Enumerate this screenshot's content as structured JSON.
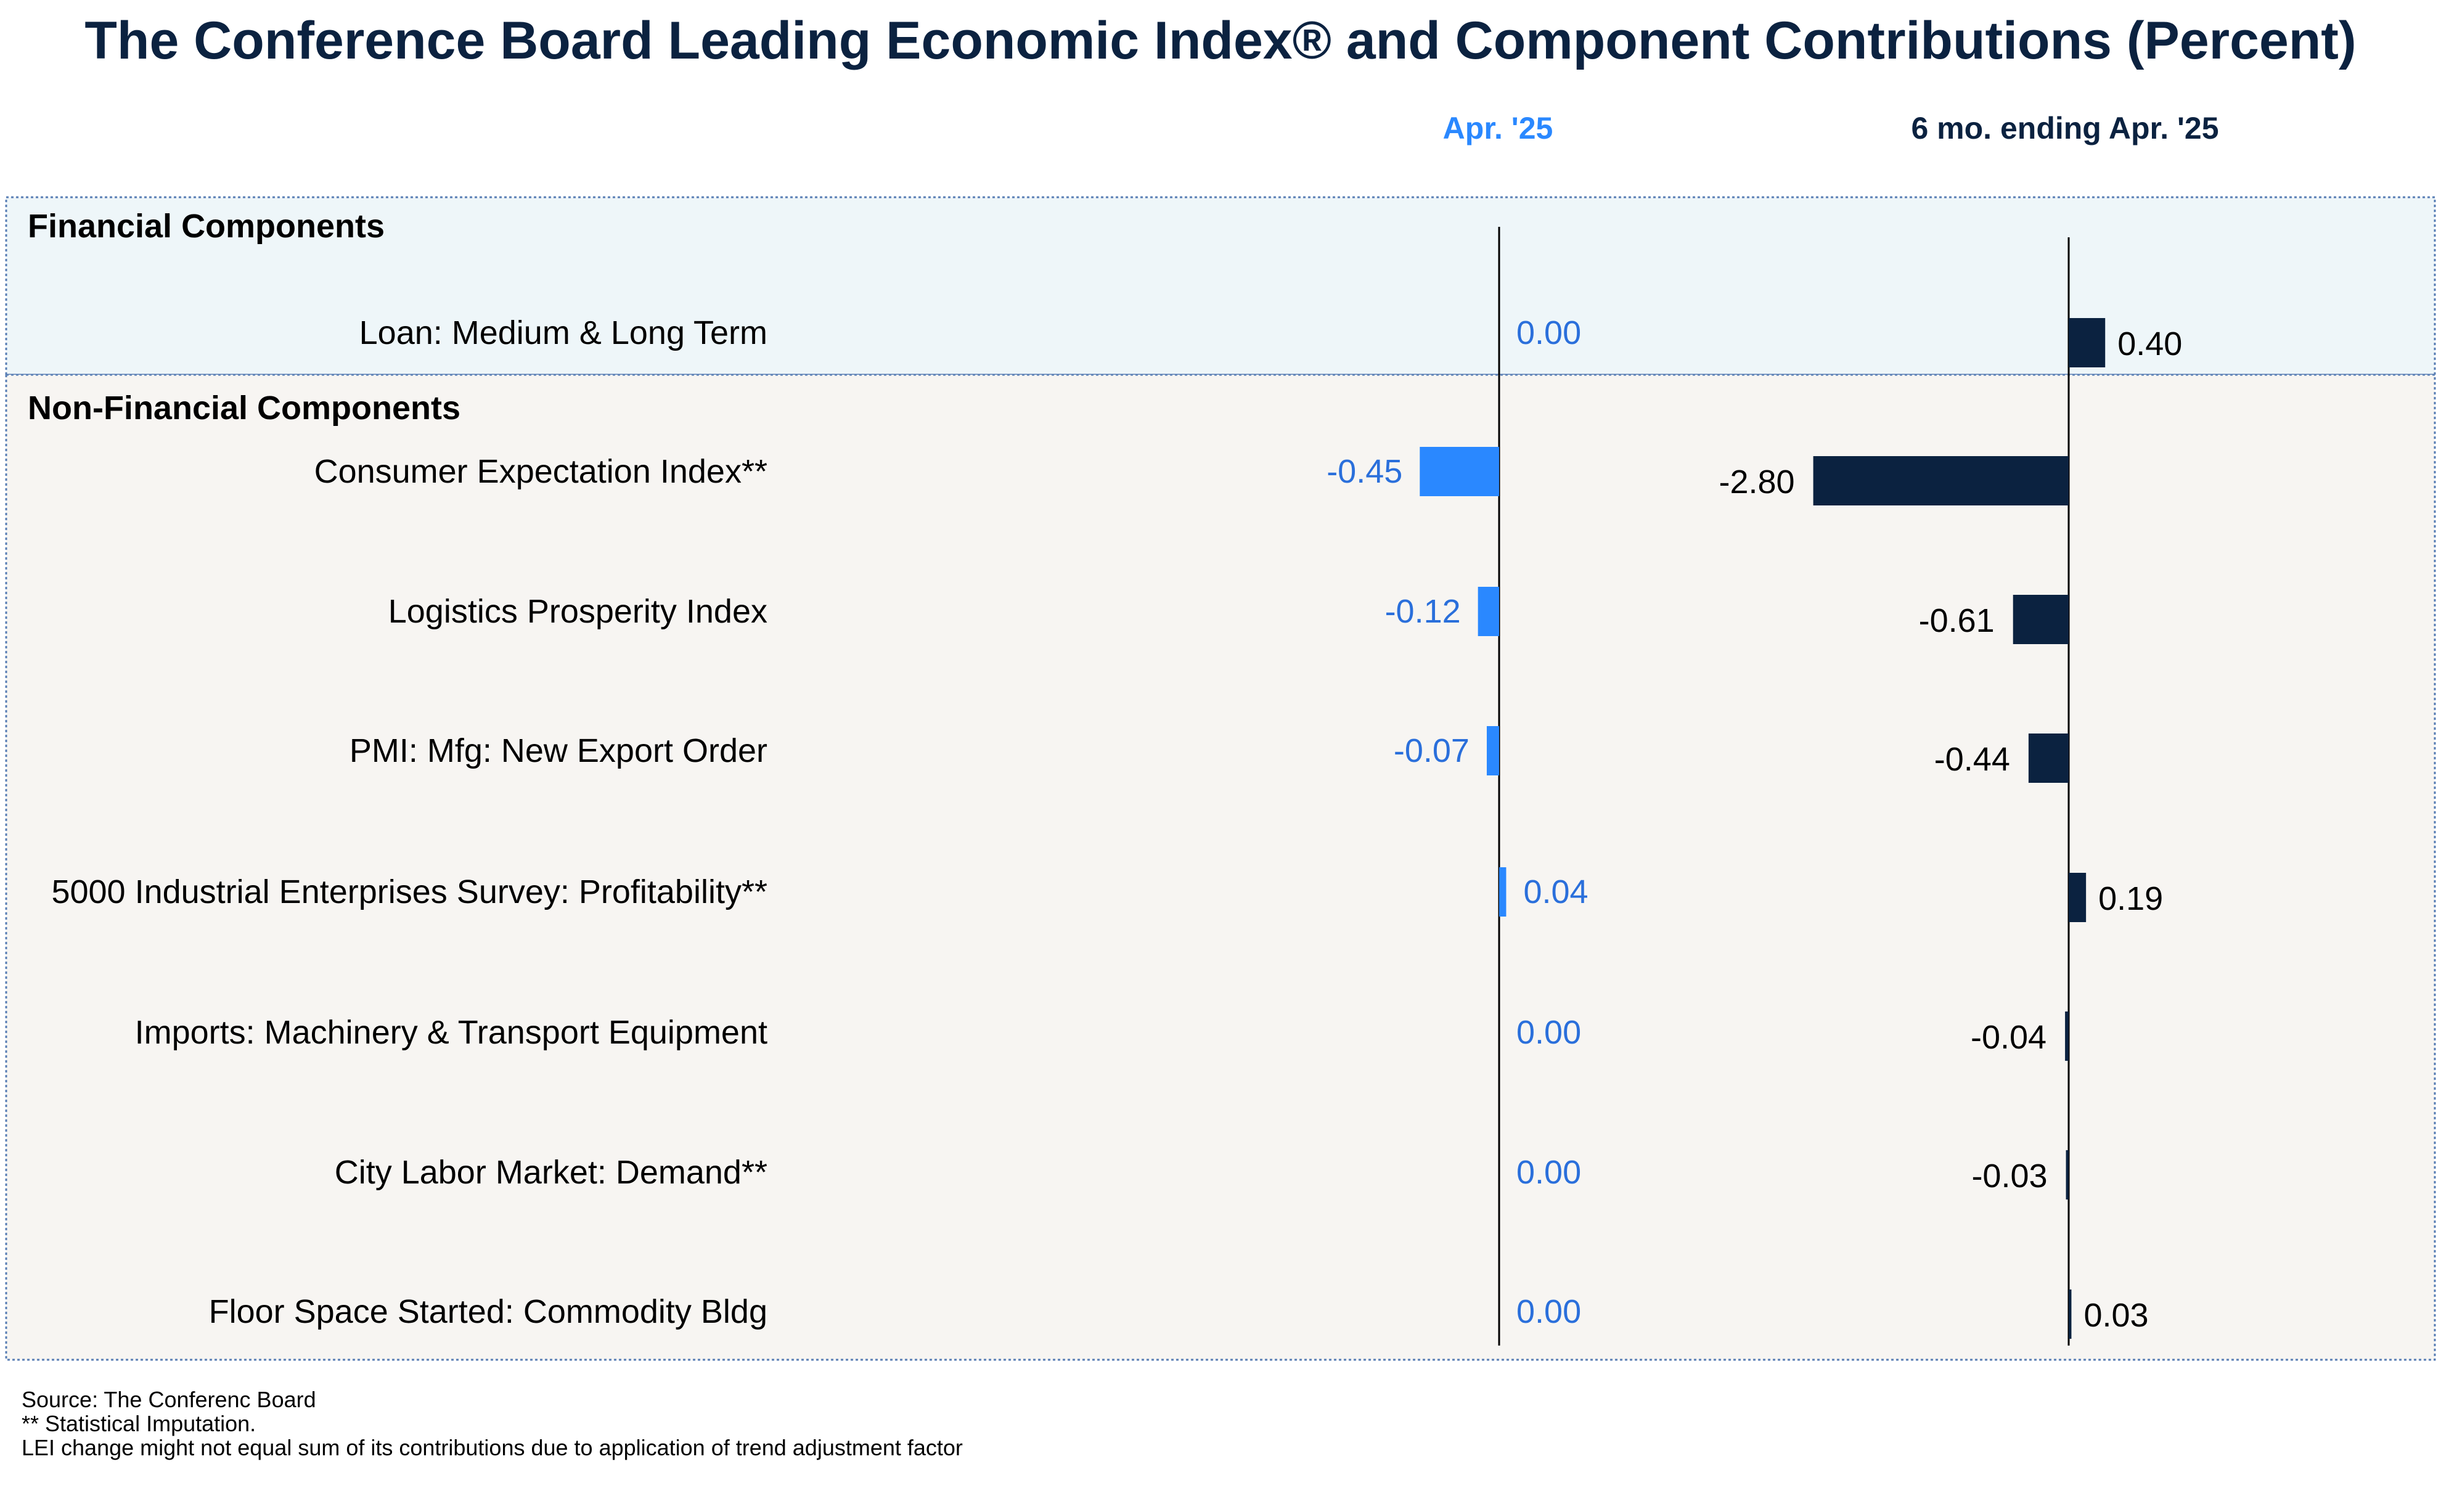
{
  "chart_data": {
    "type": "bar",
    "title": "The Conference Board Leading Economic Index® and Component Contributions (Percent)",
    "col1_header": "Apr. '25",
    "col2_header": "6 mo. ending Apr. '25",
    "groups": [
      {
        "name": "Financial Components",
        "items": [
          {
            "label": "Loan: Medium & Long Term",
            "apr": 0.0,
            "six_mo": 0.4
          }
        ]
      },
      {
        "name": "Non-Financial Components",
        "items": [
          {
            "label": "Consumer Expectation Index**",
            "apr": -0.45,
            "six_mo": -2.8
          },
          {
            "label": "Logistics Prosperity Index",
            "apr": -0.12,
            "six_mo": -0.61
          },
          {
            "label": "PMI: Mfg: New Export Order",
            "apr": -0.07,
            "six_mo": -0.44
          },
          {
            "label": "5000 Industrial Enterprises Survey: Profitability**",
            "apr": 0.04,
            "six_mo": 0.19
          },
          {
            "label": "Imports: Machinery & Transport Equipment",
            "apr": 0.0,
            "six_mo": -0.04
          },
          {
            "label": "City Labor Market: Demand**",
            "apr": 0.0,
            "six_mo": -0.03
          },
          {
            "label": "Floor Space Started: Commodity Bldg",
            "apr": 0.0,
            "six_mo": 0.03
          }
        ]
      }
    ],
    "footnotes": [
      "Source: The Conferenc Board",
      "**  Statistical Imputation.",
      "LEI change might not equal sum of its contributions due to application of trend adjustment factor"
    ],
    "colors": {
      "title": "#0b2240",
      "apr_bar": "#2a88ff",
      "apr_label": "#2a6fdb",
      "six_mo_bar": "#0b2240",
      "six_mo_label": "#000000",
      "financial_bg": "#eef6f9",
      "nonfinancial_bg": "#f7f5f2",
      "border": "#5a7fb5"
    }
  }
}
